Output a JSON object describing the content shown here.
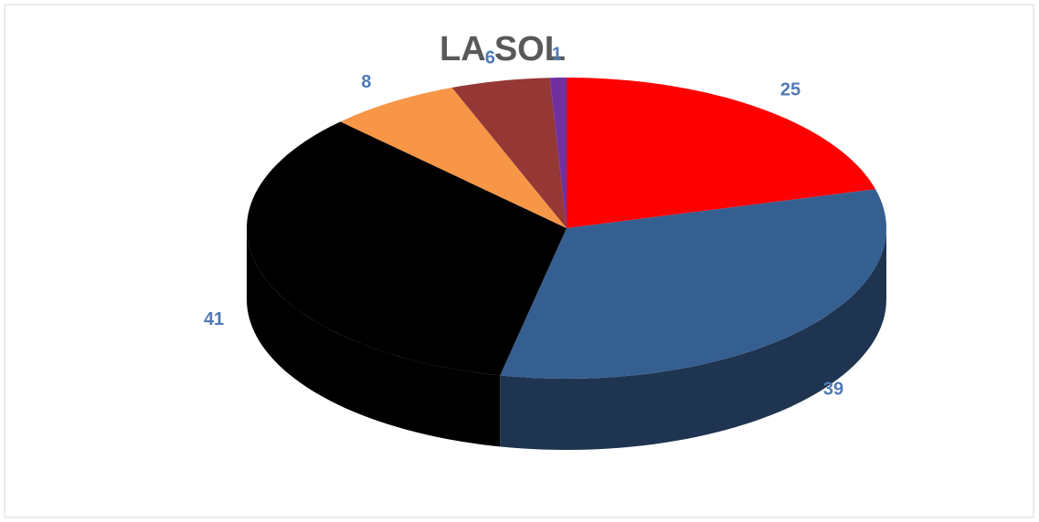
{
  "chart_data": {
    "type": "pie",
    "title": "LA SOL",
    "categories": [
      null,
      null,
      null,
      null,
      null,
      null
    ],
    "values": [
      25,
      39,
      41,
      8,
      6,
      1
    ],
    "colors": [
      "#ff0000",
      "#365f91",
      "#000000",
      "#f79646",
      "#953735",
      "#7030a0"
    ]
  }
}
